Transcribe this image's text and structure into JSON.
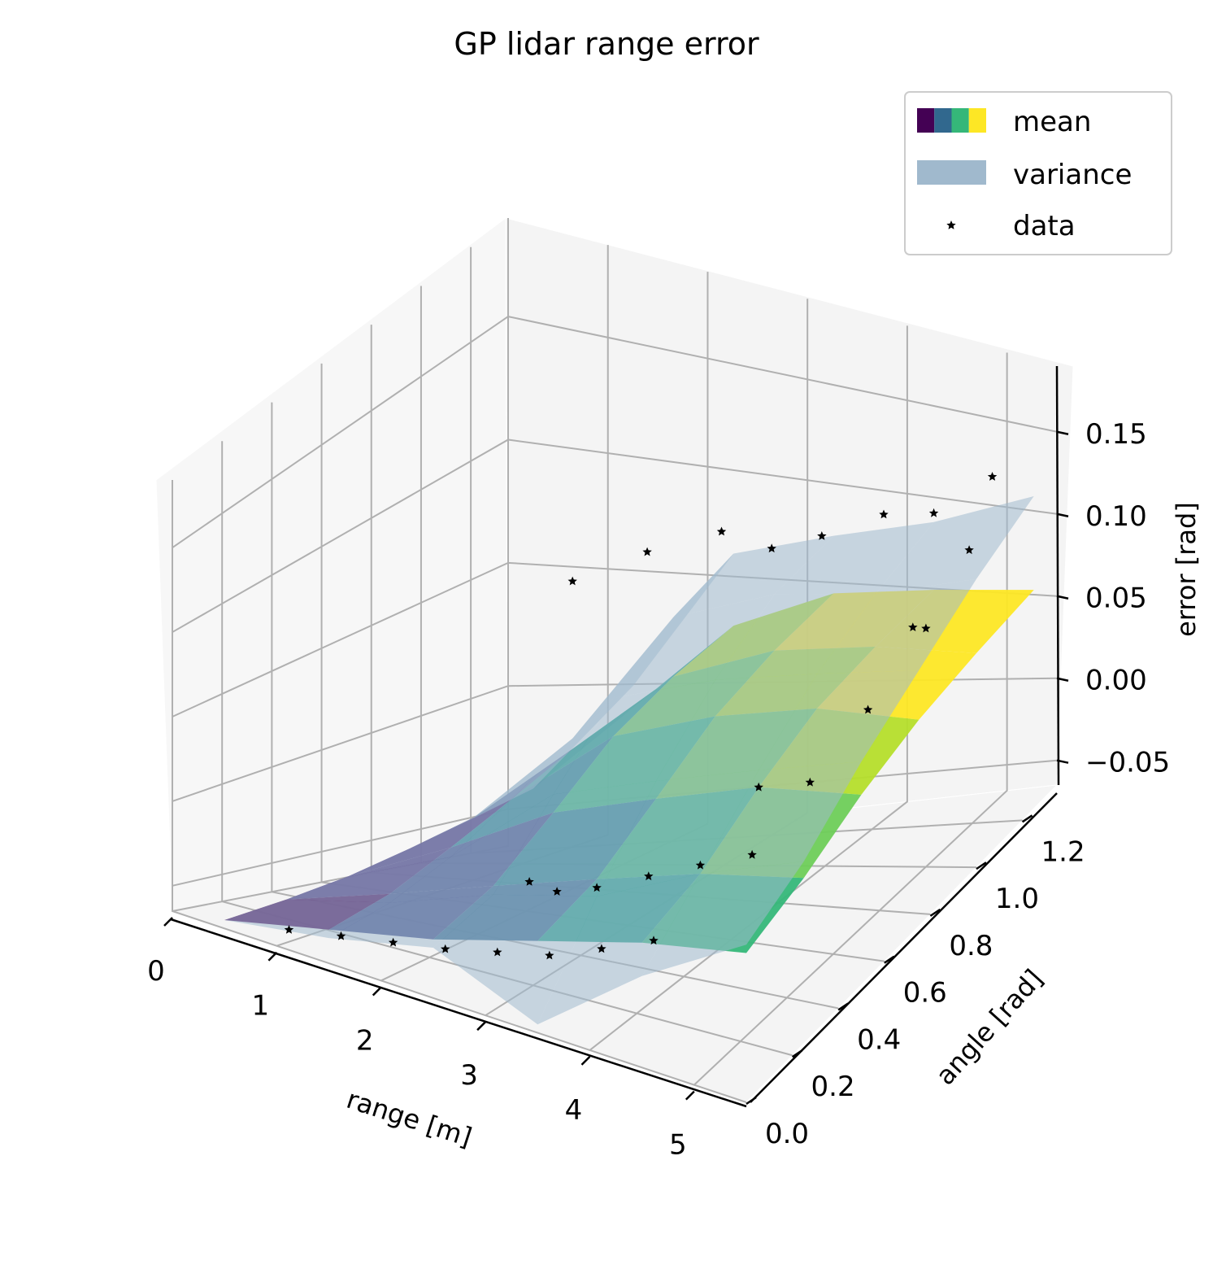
{
  "chart_data": {
    "type": "surface3d",
    "title": "GP lidar range error",
    "xlabel": "range [m]",
    "ylabel": "angle [rad]",
    "zlabel": "error [rad]",
    "xlim": [
      0,
      5.5
    ],
    "ylim": [
      0,
      1.35
    ],
    "zlim": [
      -0.065,
      0.19
    ],
    "xticks": [
      "0",
      "1",
      "2",
      "3",
      "4",
      "5"
    ],
    "xtick_values": [
      0,
      1,
      2,
      3,
      4,
      5
    ],
    "yticks": [
      "0.0",
      "0.2",
      "0.4",
      "0.6",
      "0.8",
      "1.0",
      "1.2"
    ],
    "ytick_values": [
      0.0,
      0.2,
      0.4,
      0.6,
      0.8,
      1.0,
      1.2
    ],
    "zticks": [
      "−0.05",
      "0.00",
      "0.05",
      "0.10",
      "0.15"
    ],
    "ztick_values": [
      -0.05,
      0.0,
      0.05,
      0.1,
      0.15
    ],
    "grid": true,
    "legend_position": "top-right",
    "colormap": "viridis",
    "series": [
      {
        "name": "mean",
        "kind": "surface",
        "colors": [
          "#440154",
          "#31688e",
          "#35b779",
          "#fde725"
        ],
        "x": [
          0.5,
          1.5,
          2.5,
          3.5,
          4.5,
          5.5
        ],
        "y": [
          0.0,
          0.25,
          0.5,
          0.75,
          1.0,
          1.25
        ],
        "z": [
          [
            -0.06,
            -0.045,
            -0.03,
            -0.01,
            0.01,
            0.025
          ],
          [
            -0.058,
            -0.04,
            -0.02,
            0.0,
            0.02,
            0.035
          ],
          [
            -0.055,
            -0.03,
            0.0,
            0.02,
            0.04,
            0.05
          ],
          [
            -0.05,
            -0.02,
            0.02,
            0.04,
            0.055,
            0.06
          ],
          [
            -0.045,
            -0.01,
            0.03,
            0.05,
            0.06,
            0.065
          ],
          [
            -0.04,
            -0.005,
            0.035,
            0.055,
            0.062,
            0.068
          ]
        ]
      },
      {
        "name": "variance",
        "kind": "surface",
        "color": "#a0b9cd",
        "x": [
          0.5,
          1.5,
          2.5,
          3.5,
          4.5,
          5.5
        ],
        "y": [
          0.0,
          0.25,
          0.5,
          0.75,
          1.0,
          1.25
        ],
        "z": [
          [
            -0.06,
            -0.05,
            -0.035,
            -0.06,
            -0.01,
            0.03
          ],
          [
            -0.058,
            -0.045,
            -0.025,
            -0.01,
            0.02,
            0.045
          ],
          [
            -0.055,
            -0.035,
            0.01,
            0.03,
            0.05,
            0.07
          ],
          [
            -0.05,
            -0.02,
            0.04,
            0.06,
            0.075,
            0.09
          ],
          [
            -0.045,
            -0.005,
            0.06,
            0.08,
            0.09,
            0.11
          ],
          [
            -0.04,
            0.005,
            0.07,
            0.085,
            0.1,
            0.125
          ]
        ]
      },
      {
        "name": "data",
        "kind": "scatter",
        "marker": "star",
        "color": "#000000",
        "points": [
          [
            1.0,
            0.05,
            -0.058
          ],
          [
            1.5,
            0.05,
            -0.052
          ],
          [
            2.0,
            0.05,
            -0.046
          ],
          [
            2.5,
            0.05,
            -0.04
          ],
          [
            3.0,
            0.05,
            -0.032
          ],
          [
            3.5,
            0.05,
            -0.024
          ],
          [
            4.0,
            0.05,
            -0.01
          ],
          [
            4.5,
            0.05,
            0.005
          ],
          [
            3.5,
            0.25,
            -0.005
          ],
          [
            4.0,
            0.25,
            0.01
          ],
          [
            4.5,
            0.25,
            0.025
          ],
          [
            5.0,
            0.25,
            0.04
          ],
          [
            4.5,
            0.5,
            0.04
          ],
          [
            5.0,
            0.5,
            0.05
          ],
          [
            5.0,
            0.75,
            0.06
          ],
          [
            5.0,
            1.0,
            0.075
          ],
          [
            5.2,
            1.2,
            0.14
          ],
          [
            5.2,
            1.1,
            0.11
          ],
          [
            5.1,
            0.9,
            0.09
          ],
          [
            2.0,
            1.1,
            0.08
          ],
          [
            2.5,
            1.2,
            0.085
          ],
          [
            3.0,
            1.2,
            0.08
          ],
          [
            3.5,
            1.2,
            0.09
          ],
          [
            4.0,
            1.25,
            0.1
          ],
          [
            4.5,
            1.25,
            0.105
          ],
          [
            1.5,
            1.0,
            0.07
          ],
          [
            3.0,
            0.3,
            -0.02
          ],
          [
            2.5,
            0.4,
            -0.03
          ]
        ]
      }
    ]
  }
}
